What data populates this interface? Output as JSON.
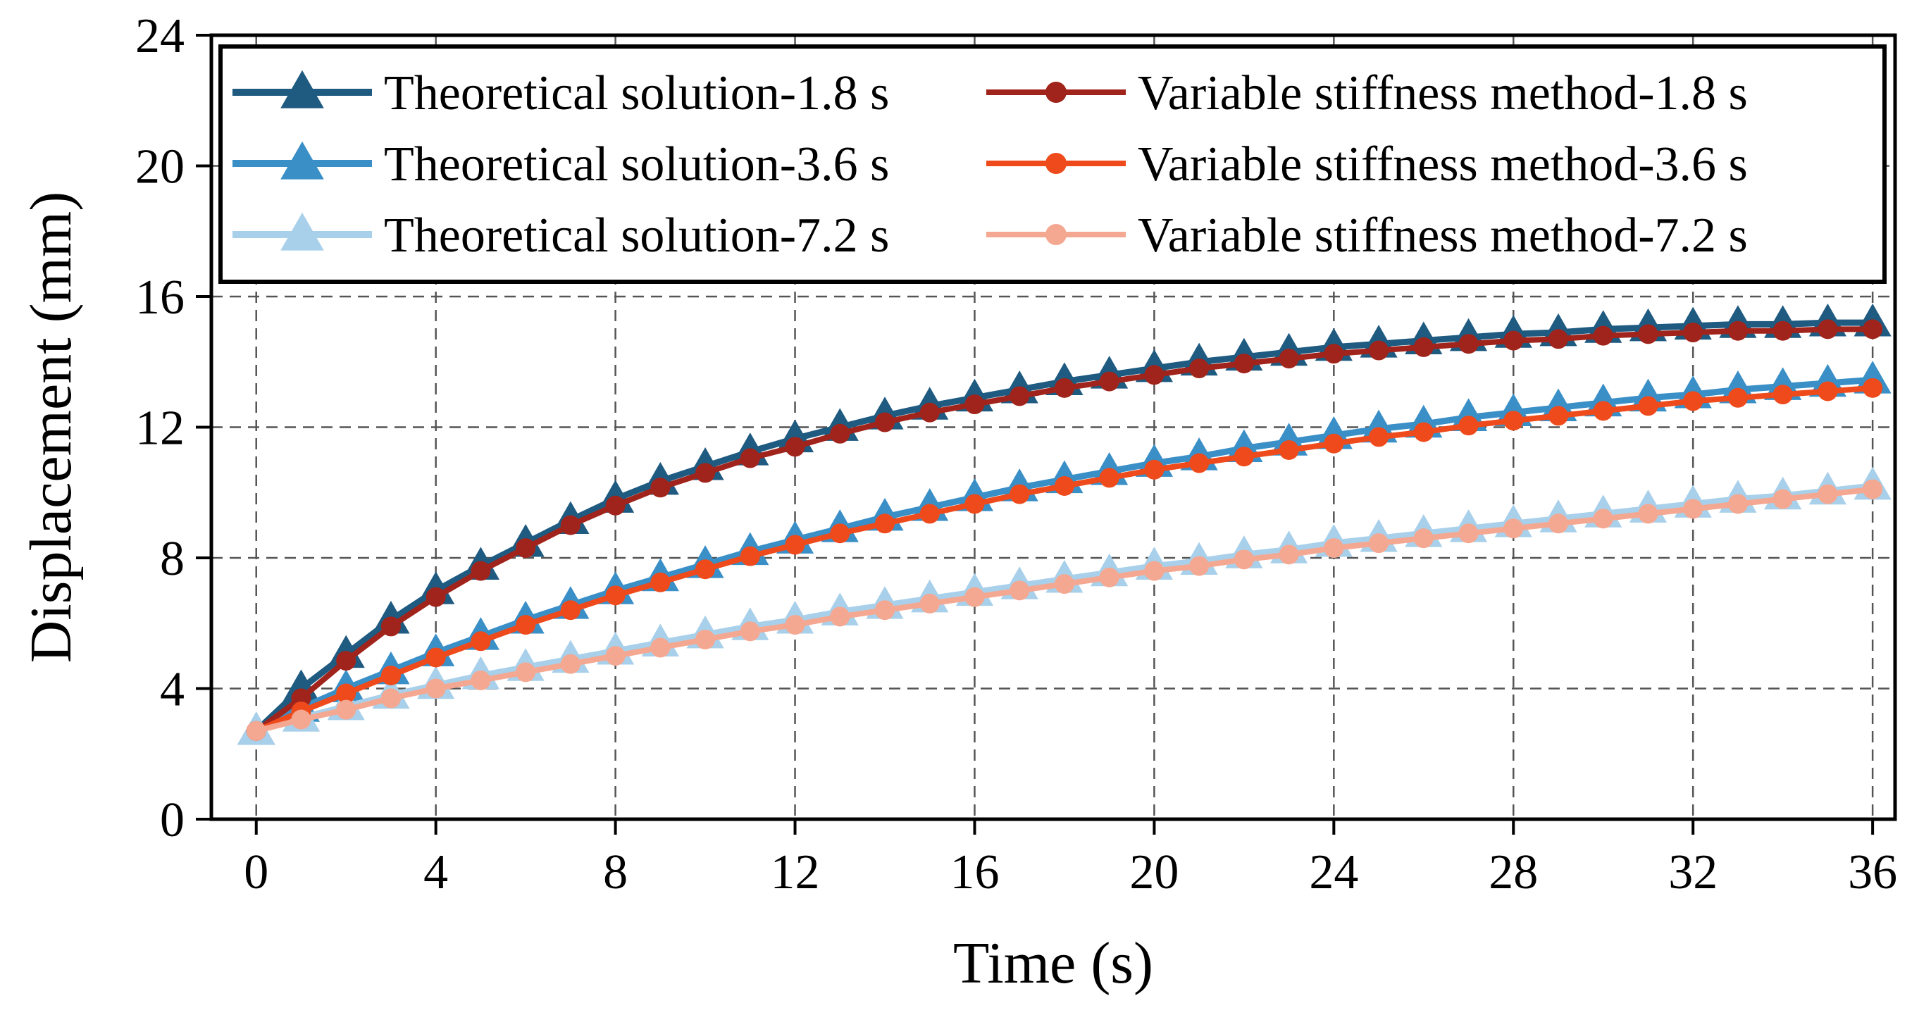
{
  "chart_data": {
    "type": "line",
    "title": "",
    "xlabel": "Time (s)",
    "ylabel": "Displacement (mm)",
    "xlim": [
      -1,
      36.5
    ],
    "ylim": [
      0,
      24
    ],
    "xticks": [
      0,
      4,
      8,
      12,
      16,
      20,
      24,
      28,
      32,
      36
    ],
    "yticks": [
      0,
      4,
      8,
      12,
      16,
      20,
      24
    ],
    "grid": true,
    "legend_position": "top",
    "x": [
      0,
      1,
      2,
      3,
      4,
      5,
      6,
      7,
      8,
      9,
      10,
      11,
      12,
      13,
      14,
      15,
      16,
      17,
      18,
      19,
      20,
      21,
      22,
      23,
      24,
      25,
      26,
      27,
      28,
      29,
      30,
      31,
      32,
      33,
      34,
      35,
      36
    ],
    "series": [
      {
        "name": "Theoretical solution-1.8 s",
        "marker": "triangle",
        "color": "#1f5a80",
        "values": [
          2.7,
          4.0,
          5.05,
          6.1,
          7.0,
          7.75,
          8.45,
          9.15,
          9.8,
          10.35,
          10.8,
          11.25,
          11.65,
          12.0,
          12.35,
          12.65,
          12.9,
          13.15,
          13.4,
          13.6,
          13.8,
          14.0,
          14.15,
          14.3,
          14.45,
          14.55,
          14.65,
          14.75,
          14.85,
          14.9,
          15.0,
          15.05,
          15.1,
          15.15,
          15.15,
          15.2,
          15.2
        ]
      },
      {
        "name": "Theoretical solution-3.6 s",
        "marker": "triangle",
        "color": "#3a8fc7",
        "values": [
          2.7,
          3.4,
          4.0,
          4.55,
          5.1,
          5.6,
          6.1,
          6.55,
          7.0,
          7.4,
          7.8,
          8.2,
          8.55,
          8.9,
          9.25,
          9.55,
          9.85,
          10.15,
          10.4,
          10.65,
          10.9,
          11.1,
          11.35,
          11.55,
          11.75,
          11.95,
          12.1,
          12.3,
          12.45,
          12.6,
          12.75,
          12.9,
          13.0,
          13.15,
          13.25,
          13.35,
          13.45
        ]
      },
      {
        "name": "Theoretical solution-7.2 s",
        "marker": "triangle",
        "color": "#a8d0ea",
        "values": [
          2.7,
          3.1,
          3.45,
          3.8,
          4.1,
          4.4,
          4.65,
          4.9,
          5.15,
          5.4,
          5.65,
          5.9,
          6.1,
          6.35,
          6.55,
          6.75,
          6.95,
          7.15,
          7.35,
          7.55,
          7.75,
          7.9,
          8.1,
          8.25,
          8.45,
          8.6,
          8.75,
          8.9,
          9.05,
          9.2,
          9.35,
          9.5,
          9.65,
          9.8,
          9.9,
          10.05,
          10.2
        ]
      },
      {
        "name": "Variable stiffness method-1.8 s",
        "marker": "circle",
        "color": "#a0241b",
        "values": [
          2.7,
          3.7,
          4.85,
          5.9,
          6.8,
          7.6,
          8.3,
          9.0,
          9.6,
          10.15,
          10.6,
          11.05,
          11.4,
          11.8,
          12.15,
          12.45,
          12.7,
          12.95,
          13.2,
          13.4,
          13.6,
          13.8,
          13.95,
          14.1,
          14.25,
          14.35,
          14.45,
          14.55,
          14.65,
          14.7,
          14.8,
          14.85,
          14.9,
          14.95,
          14.95,
          15.0,
          15.0
        ]
      },
      {
        "name": "Variable stiffness method-3.6 s",
        "marker": "circle",
        "color": "#ee4a1c",
        "values": [
          2.7,
          3.3,
          3.85,
          4.4,
          4.95,
          5.45,
          5.95,
          6.4,
          6.85,
          7.25,
          7.65,
          8.05,
          8.4,
          8.75,
          9.05,
          9.35,
          9.65,
          9.95,
          10.2,
          10.45,
          10.7,
          10.9,
          11.1,
          11.3,
          11.5,
          11.7,
          11.85,
          12.05,
          12.2,
          12.35,
          12.5,
          12.65,
          12.8,
          12.9,
          13.0,
          13.1,
          13.2
        ]
      },
      {
        "name": "Variable stiffness method-7.2 s",
        "marker": "circle",
        "color": "#f5a891",
        "values": [
          2.7,
          3.05,
          3.35,
          3.7,
          4.0,
          4.25,
          4.5,
          4.75,
          5.0,
          5.25,
          5.5,
          5.75,
          5.95,
          6.2,
          6.4,
          6.6,
          6.8,
          7.0,
          7.2,
          7.4,
          7.6,
          7.75,
          7.95,
          8.1,
          8.3,
          8.45,
          8.6,
          8.75,
          8.9,
          9.05,
          9.2,
          9.35,
          9.5,
          9.65,
          9.8,
          9.95,
          10.1
        ]
      }
    ]
  }
}
